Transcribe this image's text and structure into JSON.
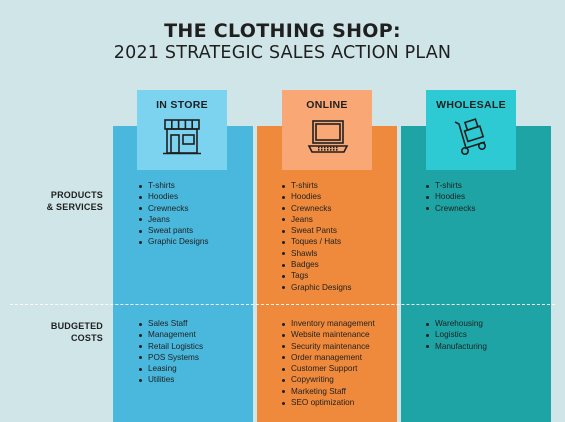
{
  "title": {
    "line1": "THE CLOTHING SHOP:",
    "line2": "2021 STRATEGIC SALES ACTION PLAN"
  },
  "columns": [
    {
      "label": "IN STORE",
      "icon": "storefront-icon",
      "color": "#4ab8dd",
      "header_color": "#7cd3f0"
    },
    {
      "label": "ONLINE",
      "icon": "laptop-icon",
      "color": "#ef8a3c",
      "header_color": "#f9a875"
    },
    {
      "label": "WHOLESALE",
      "icon": "hand-truck-icon",
      "color": "#1fa4a6",
      "header_color": "#2ecad4"
    }
  ],
  "rows": {
    "products": {
      "line1": "PRODUCTS",
      "line2": "& SERVICES"
    },
    "costs": {
      "line1": "BUDGETED",
      "line2": "COSTS"
    }
  },
  "products": {
    "instore": [
      "T-shirts",
      "Hoodies",
      "Crewnecks",
      "Jeans",
      "Sweat pants",
      "Graphic Designs"
    ],
    "online": [
      "T-shirts",
      "Hoodies",
      "Crewnecks",
      "Jeans",
      "Sweat Pants",
      "Toques / Hats",
      "Shawls",
      "Badges",
      "Tags",
      "Graphic Designs"
    ],
    "wholesale": [
      "T-shirts",
      "Hoodies",
      "Crewnecks"
    ]
  },
  "costs": {
    "instore": [
      "Sales Staff",
      "Management",
      "Retail Logistics",
      "POS Systems",
      "Leasing",
      "Utilities"
    ],
    "online": [
      "Inventory management",
      "Website maintenance",
      "Security maintenance",
      "Order management",
      "Customer Support",
      "Copywriting",
      "Marketing Staff",
      "SEO optimization"
    ],
    "wholesale": [
      "Warehousing",
      "Logistics",
      "Manufacturing"
    ]
  }
}
